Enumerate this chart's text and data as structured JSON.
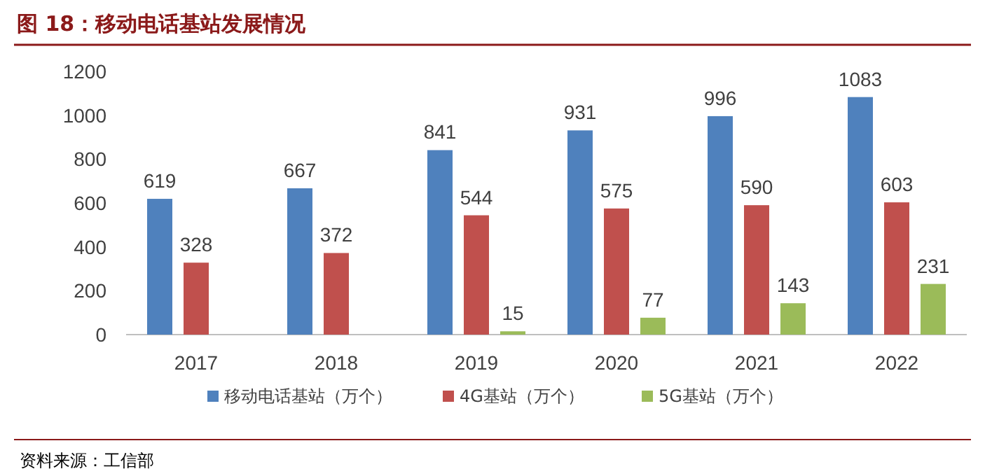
{
  "chart_data": {
    "type": "bar",
    "title": "图 18：移动电话基站发展情况",
    "categories": [
      "2017",
      "2018",
      "2019",
      "2020",
      "2021",
      "2022"
    ],
    "series": [
      {
        "name": "移动电话基站（万个）",
        "color": "#4f81bd",
        "values": [
          619,
          667,
          841,
          931,
          996,
          1083
        ]
      },
      {
        "name": "4G基站（万个）",
        "color": "#c0504d",
        "values": [
          328,
          372,
          544,
          575,
          590,
          603
        ]
      },
      {
        "name": "5G基站（万个）",
        "color": "#9bbb59",
        "values": [
          null,
          null,
          15,
          77,
          143,
          231
        ]
      }
    ],
    "ylim": [
      0,
      1200
    ],
    "yticks": [
      0,
      200,
      400,
      600,
      800,
      1000,
      1200
    ],
    "grid": false,
    "legend": "bottom",
    "data_labels": true,
    "annotations": [
      "资料来源：工信部"
    ]
  }
}
